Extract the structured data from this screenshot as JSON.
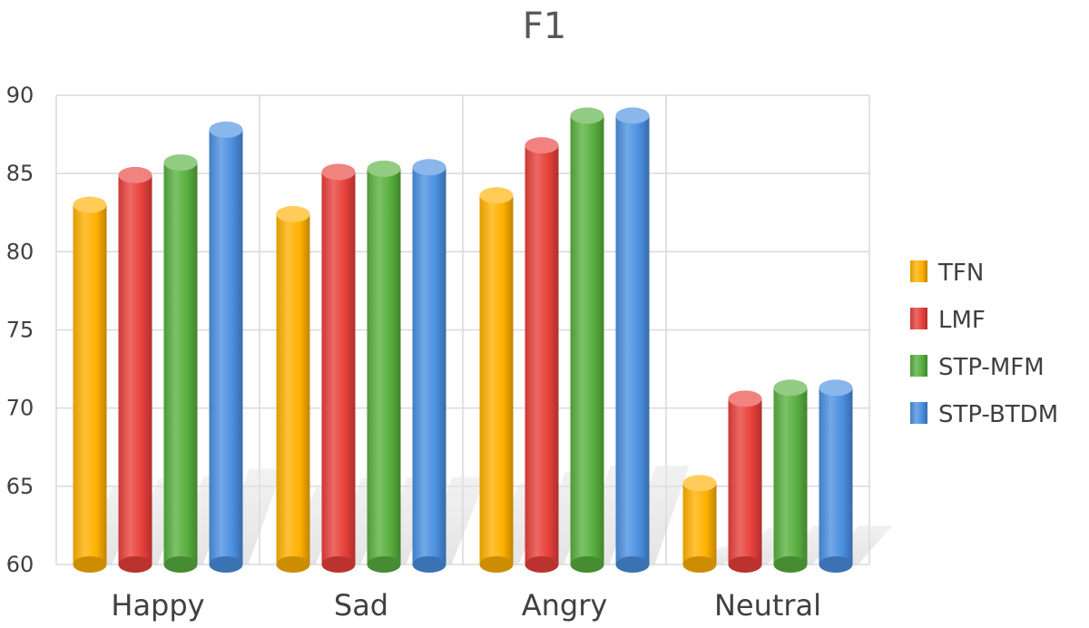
{
  "chart_data": {
    "type": "bar",
    "title": "F1",
    "xlabel": "",
    "ylabel": "",
    "categories": [
      "Happy",
      "Sad",
      "Angry",
      "Neutral"
    ],
    "ylim": [
      60,
      90
    ],
    "yticks": [
      60,
      65,
      70,
      75,
      80,
      85,
      90
    ],
    "grid": true,
    "legend_position": "right",
    "series": [
      {
        "name": "TFN",
        "color": "#FFB000",
        "values": [
          83.0,
          82.4,
          83.6,
          65.2
        ]
      },
      {
        "name": "LMF",
        "color": "#E8403A",
        "values": [
          84.9,
          85.1,
          86.8,
          70.6
        ]
      },
      {
        "name": "STP-MFM",
        "color": "#58AF3E",
        "values": [
          85.7,
          85.3,
          88.7,
          71.3
        ]
      },
      {
        "name": "STP-BTDM",
        "color": "#4A8FE0",
        "values": [
          87.8,
          85.4,
          88.7,
          71.3
        ]
      }
    ]
  }
}
